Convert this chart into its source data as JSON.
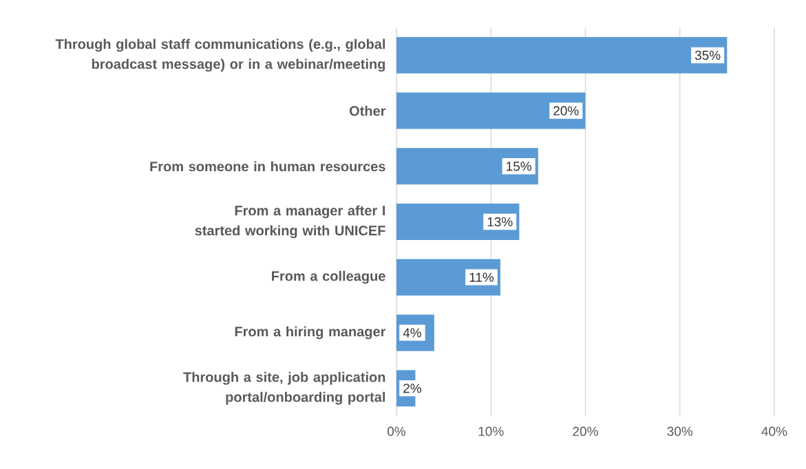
{
  "chart_data": {
    "type": "bar",
    "orientation": "horizontal",
    "categories": [
      "Through global staff communications (e.g., global broadcast message) or in a webinar/meeting",
      "Other",
      "From someone in human resources",
      "From a manager after I started working with UNICEF",
      "From a colleague",
      "From a hiring manager",
      "Through a site, job application portal/onboarding portal"
    ],
    "values": [
      35,
      20,
      15,
      13,
      11,
      4,
      2
    ],
    "value_labels": [
      "35%",
      "20%",
      "15%",
      "13%",
      "11%",
      "4%",
      "2%"
    ],
    "color": "#5b9bd5",
    "xlim": [
      0,
      40
    ],
    "xticks": [
      {
        "value": 0,
        "label": "0%"
      },
      {
        "value": 10,
        "label": "10%"
      },
      {
        "value": 20,
        "label": "20%"
      },
      {
        "value": 30,
        "label": "30%"
      },
      {
        "value": 40,
        "label": "40%"
      }
    ],
    "grid": "x"
  }
}
